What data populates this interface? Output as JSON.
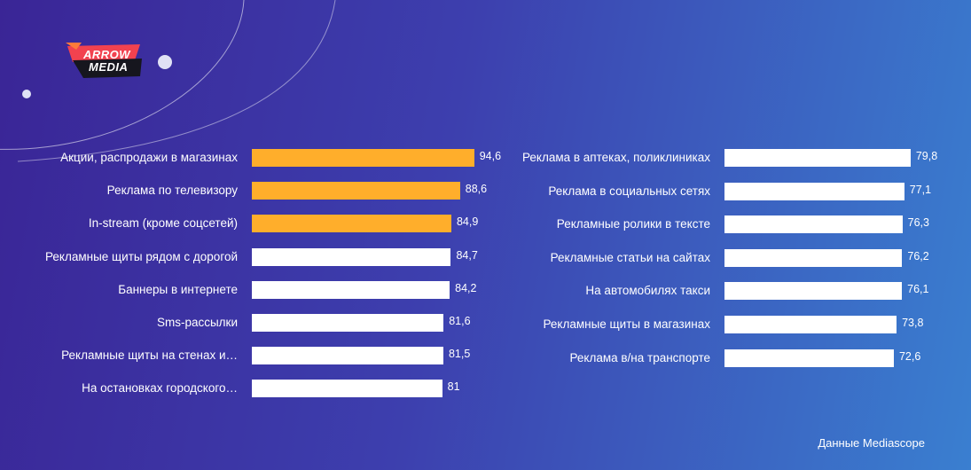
{
  "logo": {
    "line1": "ARROW",
    "line2": "MEDIA"
  },
  "colors": {
    "highlight": "#ffae2b",
    "bar": "#ffffff",
    "text": "#ffffff"
  },
  "source": "Данные Mediascope",
  "chart_data": [
    {
      "type": "bar",
      "orientation": "horizontal",
      "categories": [
        "Акции, распродажи в магазинах",
        "Реклама по телевизору",
        "In-stream (кроме соцсетей)",
        "Рекламные щиты рядом с дорогой",
        "Баннеры в интернете",
        "Sms-рассылки",
        "Рекламные щиты на стенах и…",
        "На остановках городского…"
      ],
      "values": [
        94.6,
        88.6,
        84.9,
        84.7,
        84.2,
        81.6,
        81.5,
        81
      ],
      "value_labels": [
        "94,6",
        "88,6",
        "84,9",
        "84,7",
        "84,2",
        "81,6",
        "81,5",
        "81"
      ],
      "highlighted": [
        true,
        true,
        true,
        false,
        false,
        false,
        false,
        false
      ]
    },
    {
      "type": "bar",
      "orientation": "horizontal",
      "categories": [
        "Реклама в аптеках, поликлиниках",
        "Реклама в социальных сетях",
        "Рекламные ролики в тексте",
        "Рекламные статьи на сайтах",
        "На автомобилях такси",
        "Рекламные щиты в магазинах",
        "Реклама в/на транспорте"
      ],
      "values": [
        79.8,
        77.1,
        76.3,
        76.2,
        76.1,
        73.8,
        72.6
      ],
      "value_labels": [
        "79,8",
        "77,1",
        "76,3",
        "76,2",
        "76,1",
        "73,8",
        "72,6"
      ],
      "highlighted": [
        false,
        false,
        false,
        false,
        false,
        false,
        false
      ]
    }
  ]
}
